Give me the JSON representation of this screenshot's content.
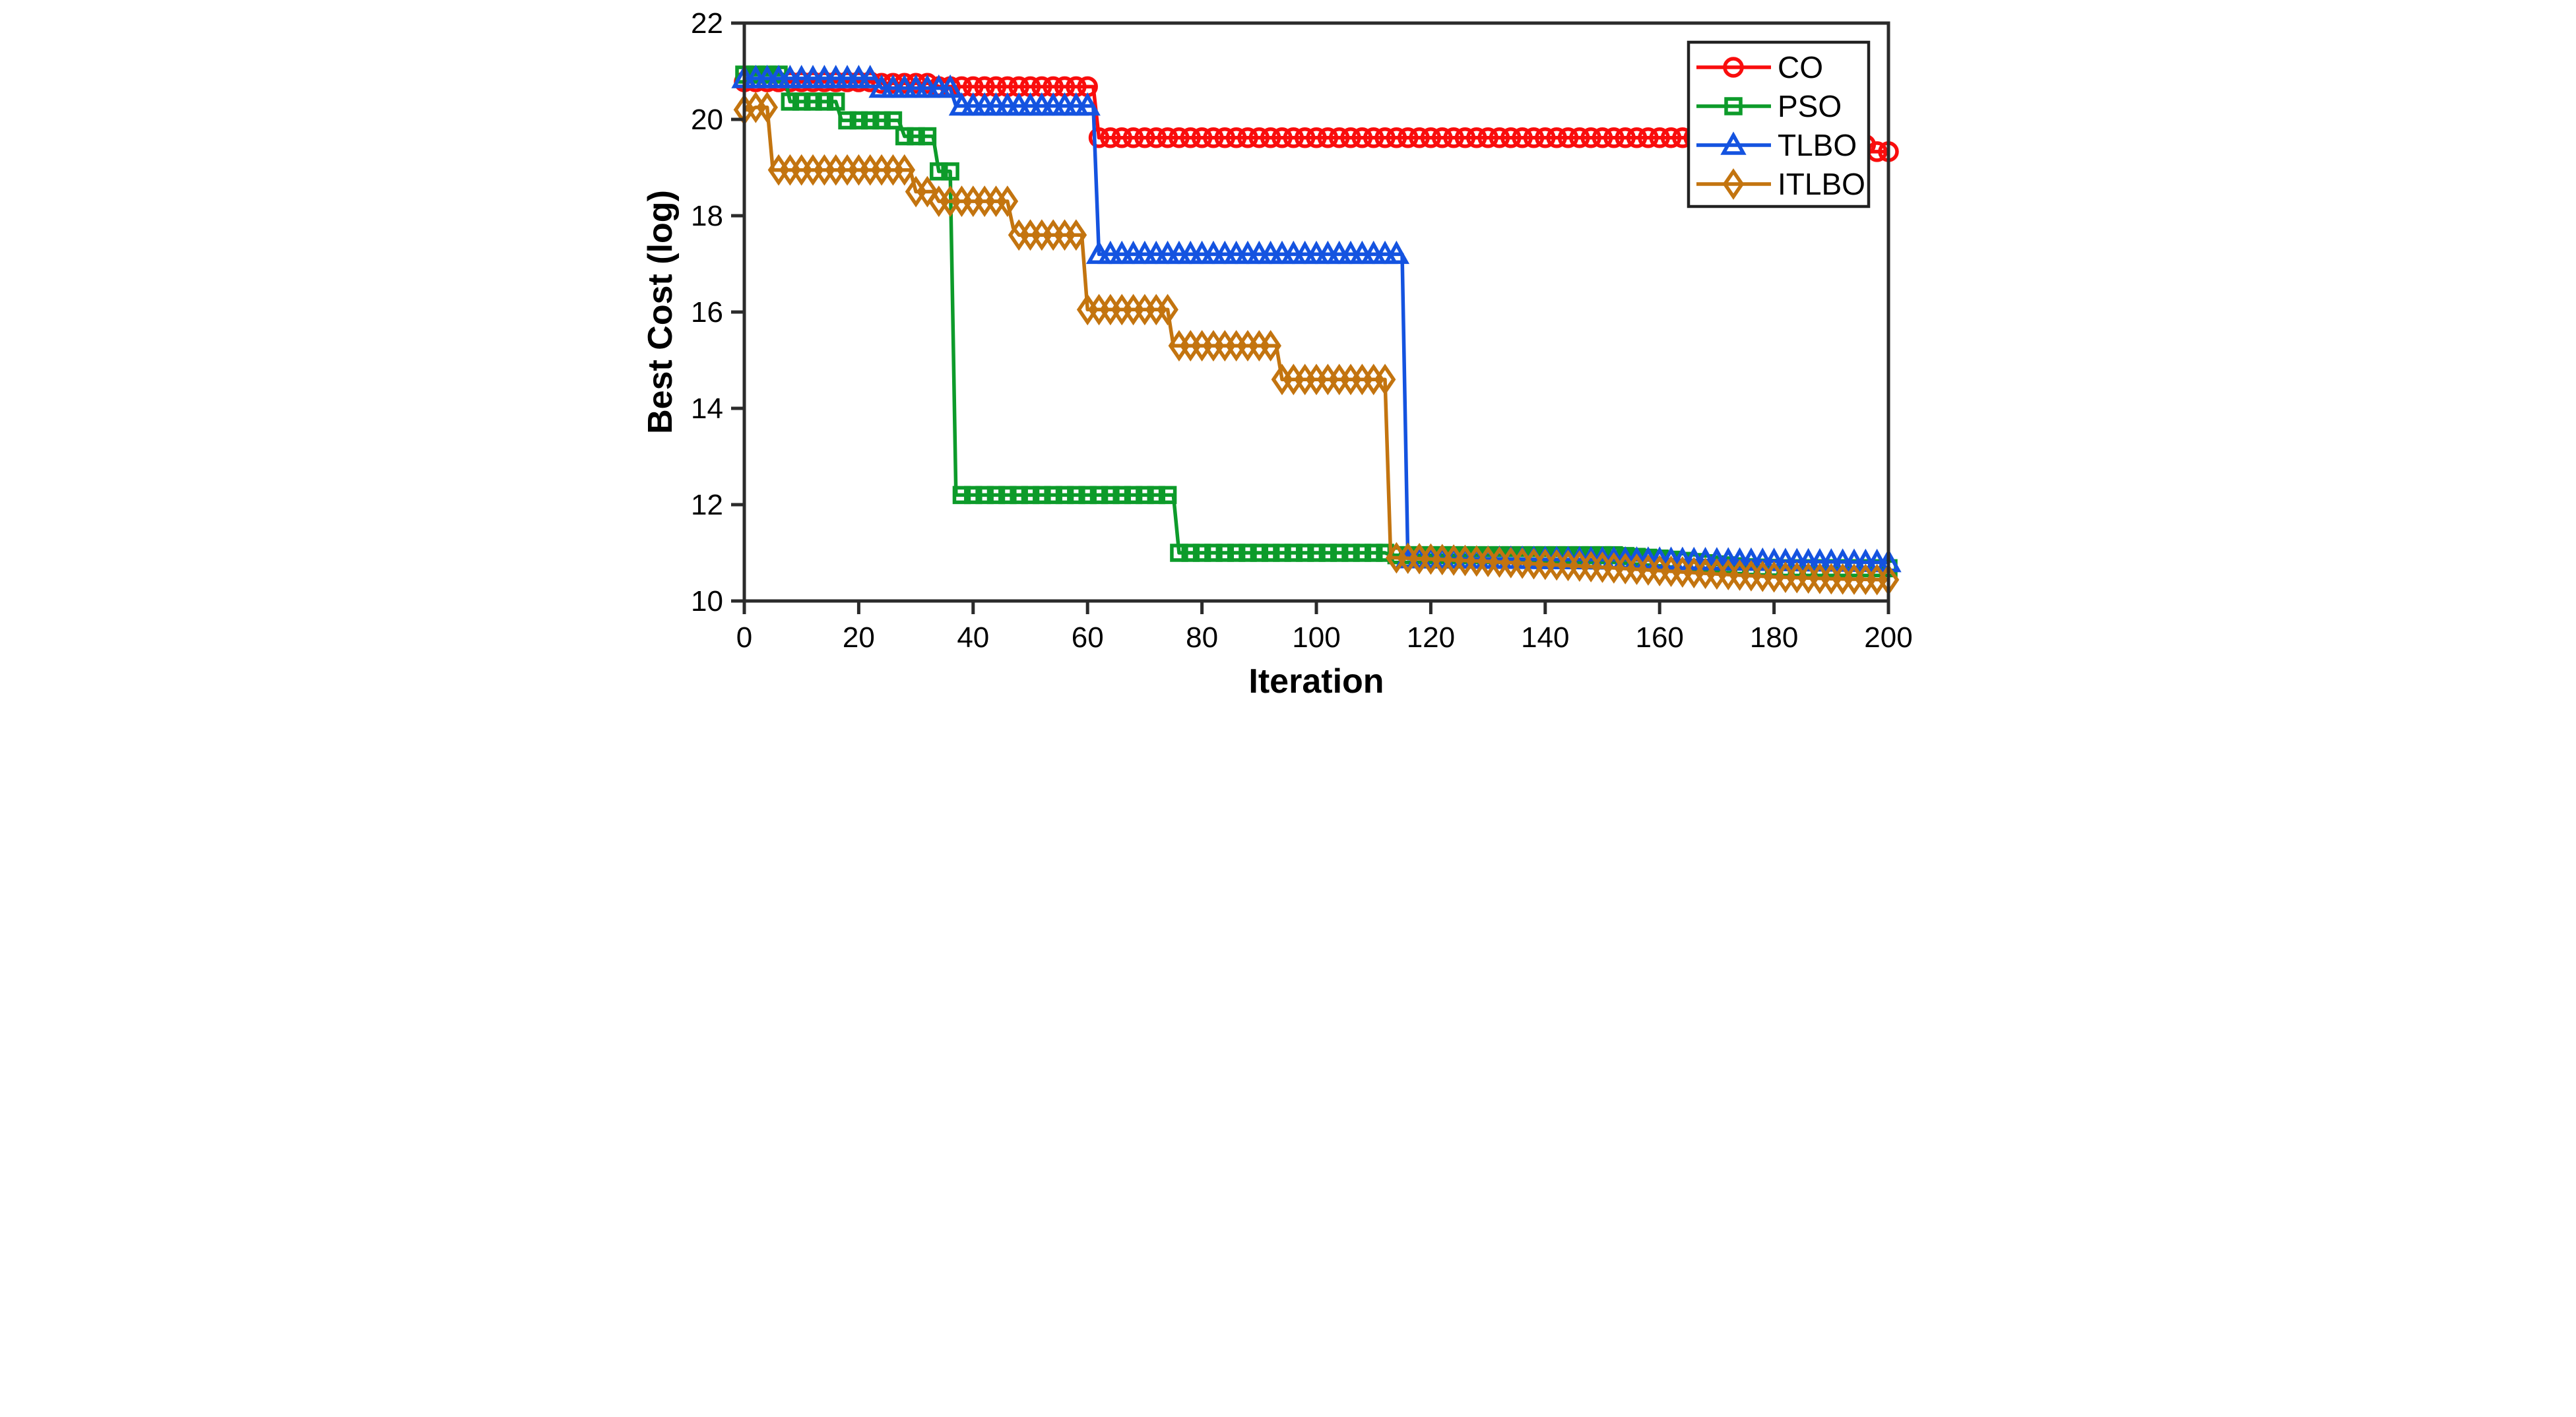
{
  "figure": {
    "background": "#ffffff",
    "axis_color": "#2b2b2b",
    "text_color": "#000000"
  },
  "chart_data": {
    "type": "line",
    "title": "",
    "xlabel": "Iteration",
    "ylabel": "Best Cost (log)",
    "xlim": [
      0,
      200
    ],
    "ylim": [
      10,
      22
    ],
    "x_ticks": [
      0,
      20,
      40,
      60,
      80,
      100,
      120,
      140,
      160,
      180,
      200
    ],
    "y_ticks": [
      10,
      12,
      14,
      16,
      18,
      20,
      22
    ],
    "grid": false,
    "legend_position": "upper right",
    "marker_every": 2,
    "series": [
      {
        "name": "CO",
        "color": "#f90d0d",
        "marker": "circle",
        "breakpoints": [
          [
            0,
            20.78
          ],
          [
            23,
            20.78
          ],
          [
            24,
            20.75
          ],
          [
            33,
            20.75
          ],
          [
            34,
            20.68
          ],
          [
            61,
            20.68
          ],
          [
            62,
            19.62
          ],
          [
            195,
            19.62
          ],
          [
            197,
            19.33
          ],
          [
            200,
            19.33
          ]
        ]
      },
      {
        "name": "PSO",
        "color": "#0d9b2a",
        "marker": "square",
        "breakpoints": [
          [
            0,
            20.93
          ],
          [
            7,
            20.93
          ],
          [
            8,
            20.37
          ],
          [
            16,
            20.37
          ],
          [
            17,
            19.98
          ],
          [
            27,
            19.98
          ],
          [
            28,
            19.65
          ],
          [
            33,
            19.65
          ],
          [
            34,
            18.92
          ],
          [
            36,
            18.92
          ],
          [
            37,
            12.2
          ],
          [
            75,
            12.2
          ],
          [
            76,
            11.0
          ],
          [
            112,
            11.0
          ],
          [
            113,
            10.95
          ],
          [
            152,
            10.95
          ],
          [
            160,
            10.88
          ],
          [
            170,
            10.76
          ],
          [
            176,
            10.7
          ],
          [
            182,
            10.68
          ],
          [
            200,
            10.68
          ]
        ]
      },
      {
        "name": "TLBO",
        "color": "#1453e0",
        "marker": "triangle",
        "breakpoints": [
          [
            0,
            20.85
          ],
          [
            23,
            20.85
          ],
          [
            24,
            20.65
          ],
          [
            36,
            20.65
          ],
          [
            37,
            20.28
          ],
          [
            61,
            20.28
          ],
          [
            62,
            17.2
          ],
          [
            115,
            17.2
          ],
          [
            116,
            10.88
          ],
          [
            160,
            10.85
          ],
          [
            200,
            10.8
          ]
        ]
      },
      {
        "name": "ITLBO",
        "color": "#c3740f",
        "marker": "diamond",
        "breakpoints": [
          [
            0,
            20.2
          ],
          [
            1,
            20.2
          ],
          [
            2,
            20.25
          ],
          [
            4,
            20.25
          ],
          [
            5,
            18.95
          ],
          [
            29,
            18.95
          ],
          [
            30,
            18.5
          ],
          [
            33,
            18.5
          ],
          [
            34,
            18.3
          ],
          [
            46,
            18.3
          ],
          [
            47,
            17.75
          ],
          [
            48,
            17.6
          ],
          [
            59,
            17.6
          ],
          [
            60,
            16.05
          ],
          [
            74,
            16.05
          ],
          [
            75,
            15.3
          ],
          [
            93,
            15.3
          ],
          [
            94,
            14.6
          ],
          [
            112,
            14.6
          ],
          [
            113,
            10.9
          ],
          [
            120,
            10.87
          ],
          [
            130,
            10.82
          ],
          [
            140,
            10.76
          ],
          [
            150,
            10.7
          ],
          [
            160,
            10.63
          ],
          [
            170,
            10.56
          ],
          [
            180,
            10.5
          ],
          [
            190,
            10.46
          ],
          [
            200,
            10.44
          ]
        ]
      }
    ]
  }
}
